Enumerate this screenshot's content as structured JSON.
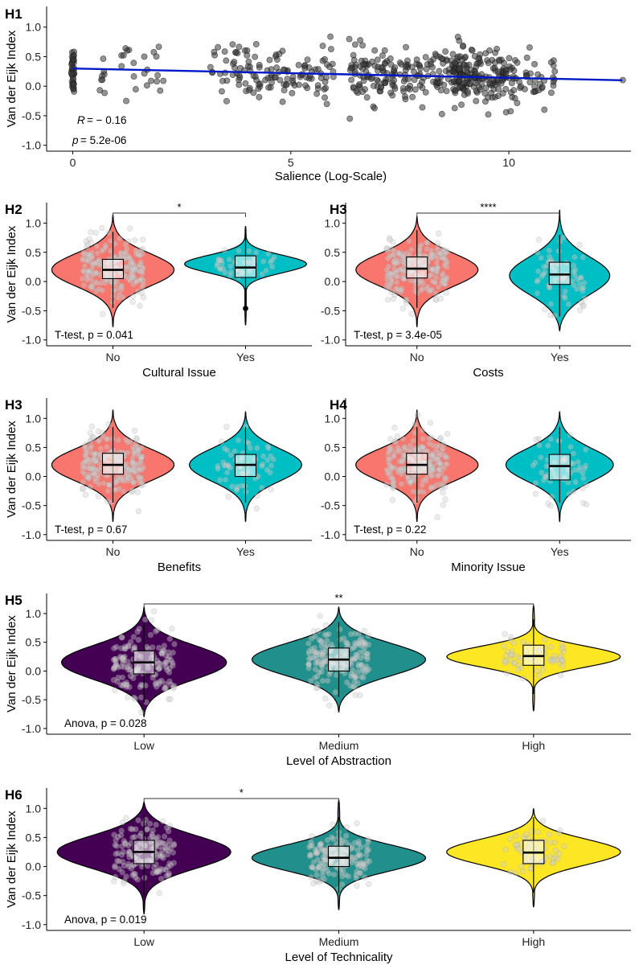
{
  "colors": {
    "no": "#f8766d",
    "yes": "#00bfc4",
    "low": "#440154",
    "medium": "#21908c",
    "high": "#fde725",
    "regression": "#0018c8",
    "points": "#3a3a3a"
  },
  "chart_data": [
    {
      "id": "H1",
      "type": "scatter",
      "label": "H1",
      "xlabel": "Salience (Log-Scale)",
      "ylabel": "Van der Eijk Index",
      "xlim": [
        -0.6,
        12.8
      ],
      "ylim": [
        -1.1,
        1.35
      ],
      "xticks": [
        0,
        5,
        10
      ],
      "yticks": [
        -1.0,
        -0.5,
        0.0,
        0.5,
        1.0
      ],
      "ytick_labels": [
        "-1.0",
        "-0.5",
        "0.0",
        "0.5",
        "1.0"
      ],
      "regression": {
        "x": [
          0,
          12.6
        ],
        "y": [
          0.3,
          0.1
        ]
      },
      "annotations": {
        "r_label": "R",
        "r_value": "= − 0.16",
        "p_label": "p",
        "p_value": "= 5.2e-06"
      },
      "clusters": [
        {
          "center": 0.0,
          "spread": 0.02,
          "n": 40
        },
        {
          "center": 0.7,
          "spread": 0.05,
          "n": 8
        },
        {
          "center": 1.3,
          "spread": 0.15,
          "n": 10
        },
        {
          "center": 1.8,
          "spread": 0.2,
          "n": 12
        },
        {
          "center": 3.3,
          "spread": 0.15,
          "n": 14
        },
        {
          "center": 4.3,
          "spread": 0.4,
          "n": 70
        },
        {
          "center": 5.5,
          "spread": 0.3,
          "n": 45
        },
        {
          "center": 6.9,
          "spread": 0.35,
          "n": 90
        },
        {
          "center": 8.3,
          "spread": 0.5,
          "n": 110
        },
        {
          "center": 9.4,
          "spread": 0.45,
          "n": 160
        },
        {
          "center": 10.6,
          "spread": 0.3,
          "n": 40
        },
        {
          "center": 12.6,
          "spread": 0.02,
          "n": 1
        }
      ]
    },
    {
      "id": "H2",
      "type": "violin",
      "label": "H2",
      "xlabel": "Cultural Issue",
      "ylabel": "Van der Eijk Index",
      "categories": [
        "No",
        "Yes"
      ],
      "fills": [
        "no",
        "yes"
      ],
      "stat": "T-test, p = 0.041",
      "significance": "*",
      "bracket": [
        0,
        1
      ],
      "groups": [
        {
          "median": 0.2,
          "q1": 0.05,
          "q3": 0.38,
          "wlo": -0.45,
          "whi": 0.85,
          "min": -0.78,
          "max": 1.15,
          "width": 1.0,
          "mu": 0.2,
          "sd": 0.28,
          "n": 220
        },
        {
          "median": 0.24,
          "q1": 0.07,
          "q3": 0.44,
          "wlo": -0.45,
          "whi": 0.82,
          "min": -0.75,
          "max": 0.95,
          "width": 1.0,
          "mu": 0.3,
          "sd": 0.15,
          "n": 40,
          "outliers": [
            -0.46
          ]
        }
      ]
    },
    {
      "id": "H3a",
      "type": "violin",
      "label": "H3",
      "xlabel": "Costs",
      "ylabel": "",
      "categories": [
        "No",
        "Yes"
      ],
      "fills": [
        "no",
        "yes"
      ],
      "stat": "T-test, p = 3.4e-05",
      "significance": "****",
      "bracket": [
        0,
        1
      ],
      "groups": [
        {
          "median": 0.22,
          "q1": 0.06,
          "q3": 0.42,
          "wlo": -0.45,
          "whi": 0.88,
          "min": -0.78,
          "max": 1.12,
          "width": 1.0,
          "mu": 0.2,
          "sd": 0.28,
          "n": 220
        },
        {
          "median": 0.12,
          "q1": -0.05,
          "q3": 0.33,
          "wlo": -0.6,
          "whi": 0.8,
          "min": -0.85,
          "max": 1.22,
          "width": 0.82,
          "mu": 0.1,
          "sd": 0.32,
          "n": 70
        }
      ]
    },
    {
      "id": "H3b",
      "type": "violin",
      "label": "H3",
      "xlabel": "Benefits",
      "ylabel": "Van der Eijk Index",
      "categories": [
        "No",
        "Yes"
      ],
      "fills": [
        "no",
        "yes"
      ],
      "stat": "T-test, p = 0.67",
      "significance": "",
      "bracket": null,
      "groups": [
        {
          "median": 0.2,
          "q1": 0.04,
          "q3": 0.4,
          "wlo": -0.45,
          "whi": 0.85,
          "min": -0.78,
          "max": 1.15,
          "width": 1.0,
          "mu": 0.2,
          "sd": 0.28,
          "n": 220
        },
        {
          "median": 0.2,
          "q1": 0.0,
          "q3": 0.38,
          "wlo": -0.45,
          "whi": 0.85,
          "min": -0.78,
          "max": 1.12,
          "width": 0.92,
          "mu": 0.2,
          "sd": 0.28,
          "n": 60
        }
      ]
    },
    {
      "id": "H4",
      "type": "violin",
      "label": "H4",
      "xlabel": "Minority Issue",
      "ylabel": "",
      "categories": [
        "No",
        "Yes"
      ],
      "fills": [
        "no",
        "yes"
      ],
      "stat": "T-test, p = 0.22",
      "significance": "",
      "bracket": null,
      "groups": [
        {
          "median": 0.2,
          "q1": 0.04,
          "q3": 0.4,
          "wlo": -0.45,
          "whi": 0.85,
          "min": -0.78,
          "max": 1.15,
          "width": 1.0,
          "mu": 0.2,
          "sd": 0.28,
          "n": 220
        },
        {
          "median": 0.18,
          "q1": -0.06,
          "q3": 0.38,
          "wlo": -0.45,
          "whi": 0.85,
          "min": -0.78,
          "max": 1.12,
          "width": 0.88,
          "mu": 0.2,
          "sd": 0.28,
          "n": 60
        }
      ]
    },
    {
      "id": "H5",
      "type": "violin",
      "label": "H5",
      "xlabel": "Level of Abstraction",
      "ylabel": "Van der Eijk Index",
      "categories": [
        "Low",
        "Medium",
        "High"
      ],
      "fills": [
        "low",
        "medium",
        "high"
      ],
      "stat": "Anova, p = 0.028",
      "significance": "**",
      "bracket": [
        0,
        2
      ],
      "groups": [
        {
          "median": 0.15,
          "q1": -0.05,
          "q3": 0.35,
          "wlo": -0.55,
          "whi": 0.85,
          "min": -0.8,
          "max": 1.12,
          "width": 0.95,
          "mu": 0.15,
          "sd": 0.3,
          "n": 150
        },
        {
          "median": 0.2,
          "q1": 0.0,
          "q3": 0.4,
          "wlo": -0.45,
          "whi": 0.85,
          "min": -0.72,
          "max": 1.12,
          "width": 1.0,
          "mu": 0.2,
          "sd": 0.28,
          "n": 180
        },
        {
          "median": 0.26,
          "q1": 0.1,
          "q3": 0.45,
          "wlo": -0.4,
          "whi": 0.9,
          "min": -0.7,
          "max": 1.15,
          "width": 1.0,
          "mu": 0.25,
          "sd": 0.18,
          "n": 60
        }
      ]
    },
    {
      "id": "H6",
      "type": "violin",
      "label": "H6",
      "xlabel": "Level of Technicality",
      "ylabel": "Van der Eijk Index",
      "categories": [
        "Low",
        "Medium",
        "High"
      ],
      "fills": [
        "low",
        "medium",
        "high"
      ],
      "stat": "Anova, p = 0.019",
      "significance": "*",
      "bracket": [
        0,
        1
      ],
      "groups": [
        {
          "median": 0.25,
          "q1": 0.05,
          "q3": 0.45,
          "wlo": -0.5,
          "whi": 0.9,
          "min": -0.82,
          "max": 1.12,
          "width": 1.0,
          "mu": 0.25,
          "sd": 0.28,
          "n": 150
        },
        {
          "median": 0.15,
          "q1": 0.0,
          "q3": 0.35,
          "wlo": -0.45,
          "whi": 0.85,
          "min": -0.75,
          "max": 1.15,
          "width": 1.0,
          "mu": 0.15,
          "sd": 0.22,
          "n": 170
        },
        {
          "median": 0.24,
          "q1": 0.05,
          "q3": 0.45,
          "wlo": -0.45,
          "whi": 0.85,
          "min": -0.7,
          "max": 1.0,
          "width": 1.0,
          "mu": 0.25,
          "sd": 0.22,
          "n": 60
        }
      ]
    }
  ]
}
